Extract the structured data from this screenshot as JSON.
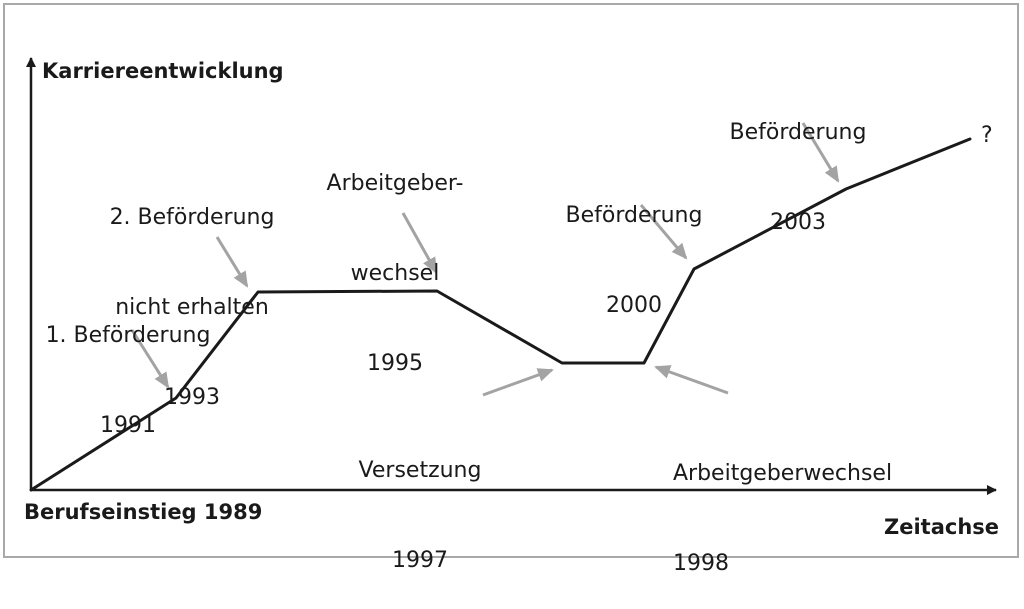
{
  "colors": {
    "line": "#1a1a1a",
    "arrow": "#a3a3a3",
    "border": "#a9a9a9",
    "text": "#1a1a1a"
  },
  "axes": {
    "y_label": "Karriereentwicklung",
    "x_label": "Zeitachse",
    "origin_label": "Berufseinstieg 1989"
  },
  "events": [
    {
      "id": "promo1",
      "lines": [
        "1. Beförderung",
        "1991"
      ]
    },
    {
      "id": "promo2",
      "lines": [
        "2. Beförderung",
        "nicht erhalten",
        "1993"
      ]
    },
    {
      "id": "switch95",
      "lines": [
        "Arbeitgeber-",
        "wechsel",
        "1995"
      ]
    },
    {
      "id": "transfer",
      "lines": [
        "Versetzung",
        "1997"
      ]
    },
    {
      "id": "switch98",
      "lines": [
        "Arbeitgeberwechsel",
        "1998"
      ]
    },
    {
      "id": "promo2000",
      "lines": [
        "Beförderung",
        "2000"
      ]
    },
    {
      "id": "promo2003",
      "lines": [
        "Beförderung",
        "2003"
      ]
    },
    {
      "id": "future",
      "lines": [
        "?"
      ]
    }
  ]
}
